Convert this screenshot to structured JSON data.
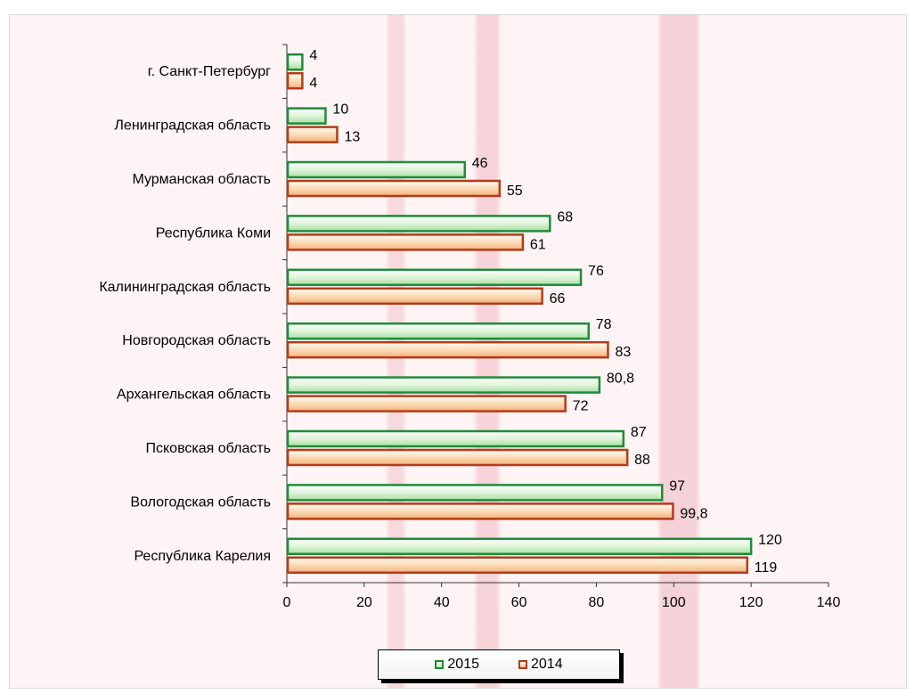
{
  "colors": {
    "series_2015_border": "#1e8c3a",
    "series_2015_fill": "#c6ecbf",
    "series_2014_border": "#b33b1a",
    "series_2014_fill": "#f7c596",
    "background": "#fff4f5"
  },
  "legend": {
    "items": [
      {
        "label": "2015"
      },
      {
        "label": "2014"
      }
    ]
  },
  "chart_data": {
    "type": "bar",
    "orientation": "horizontal",
    "categories": [
      "г. Санкт-Петербург",
      "Ленинградская область",
      "Мурманская область",
      "Республика Коми",
      "Калининградская область",
      "Новгородская область",
      "Архангельская область",
      "Псковская область",
      "Вологодская область",
      "Республика Карелия"
    ],
    "series": [
      {
        "name": "2015",
        "values": [
          4,
          10,
          46,
          68,
          76,
          78,
          80.8,
          87,
          97,
          120
        ],
        "labels": [
          "4",
          "10",
          "46",
          "68",
          "76",
          "78",
          "80,8",
          "87",
          "97",
          "120"
        ]
      },
      {
        "name": "2014",
        "values": [
          4,
          13,
          55,
          61,
          66,
          83,
          72,
          88,
          99.8,
          119
        ],
        "labels": [
          "4",
          "13",
          "55",
          "61",
          "66",
          "83",
          "72",
          "88",
          "99,8",
          "119"
        ]
      }
    ],
    "xlim": [
      0,
      140
    ],
    "xticks": [
      "0",
      "20",
      "40",
      "60",
      "80",
      "100",
      "120",
      "140"
    ],
    "title": "",
    "xlabel": "",
    "ylabel": "",
    "grid": false,
    "legend_position": "bottom"
  }
}
